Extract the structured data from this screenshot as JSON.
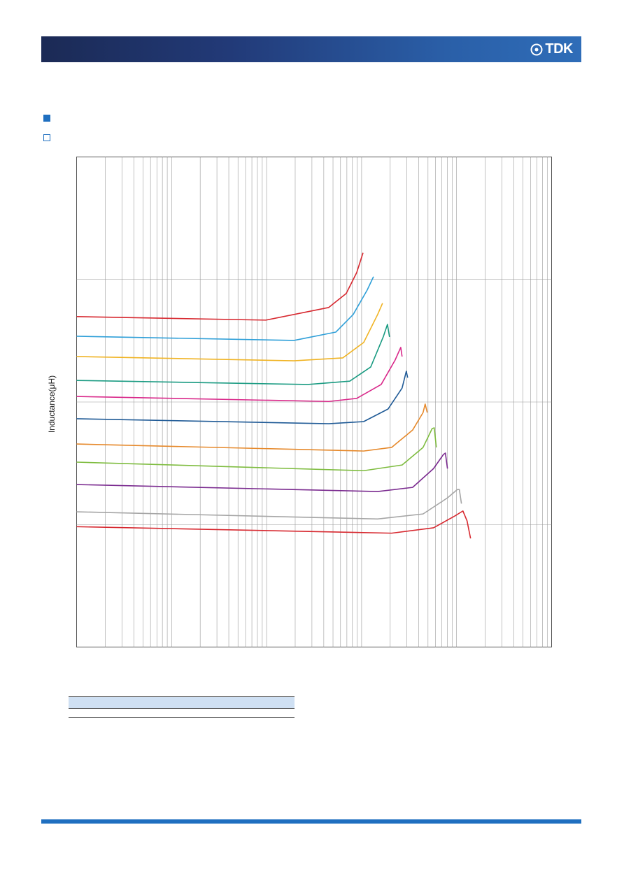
{
  "header": {
    "logo": "TDK"
  },
  "chart_data": {
    "type": "line",
    "y_label": "Inductance(μH)",
    "xscale": "log",
    "yscale": "log",
    "grid": true,
    "xlim": [
      1,
      100000
    ],
    "ylim": [
      0.0001,
      1
    ],
    "series": [
      {
        "color": "#d7282f",
        "x": [
          1,
          98,
          451,
          689,
          889,
          1035
        ],
        "y": [
          0.0498,
          0.0466,
          0.0591,
          0.0769,
          0.114,
          0.165
        ]
      },
      {
        "color": "#2e9fd8",
        "x": [
          1,
          194,
          535,
          816,
          1145,
          1334
        ],
        "y": [
          0.0344,
          0.0318,
          0.0372,
          0.0518,
          0.082,
          0.1054
        ]
      },
      {
        "color": "#f0b323",
        "x": [
          1,
          194,
          633,
          1052,
          1476,
          1662
        ],
        "y": [
          0.0235,
          0.0217,
          0.0229,
          0.0306,
          0.0518,
          0.064
        ]
      },
      {
        "color": "#1a9b82",
        "x": [
          1,
          272,
          750,
          1247,
          1690,
          1871,
          1967
        ],
        "y": [
          0.015,
          0.0139,
          0.0148,
          0.0193,
          0.034,
          0.043,
          0.034
        ]
      },
      {
        "color": "#d9288a",
        "x": [
          1,
          451,
          889,
          1607,
          2254,
          2582,
          2668
        ],
        "y": [
          0.0111,
          0.0101,
          0.0107,
          0.0139,
          0.022,
          0.0279,
          0.0235
        ]
      },
      {
        "color": "#1f5a96",
        "x": [
          1,
          451,
          1052,
          1901,
          2668,
          2955,
          3055
        ],
        "y": [
          0.0073,
          0.00665,
          0.00692,
          0.00877,
          0.013,
          0.0178,
          0.0158
        ]
      },
      {
        "color": "#e6892b",
        "x": [
          1,
          1052,
          2070,
          3443,
          4436,
          4667,
          4909
        ],
        "y": [
          0.00454,
          0.00398,
          0.00426,
          0.0059,
          0.0082,
          0.00962,
          0.0082
        ]
      },
      {
        "color": "#7ebc3f",
        "x": [
          1,
          1052,
          2668,
          4436,
          5529,
          5815,
          6121
        ],
        "y": [
          0.00323,
          0.00275,
          0.00306,
          0.00426,
          0.00607,
          0.00615,
          0.00426
        ]
      },
      {
        "color": "#7a2a8f",
        "x": [
          1,
          1476,
          3443,
          5717,
          7251,
          7621,
          8017
        ],
        "y": [
          0.00212,
          0.00186,
          0.00201,
          0.00286,
          0.00372,
          0.00383,
          0.00286
        ]
      },
      {
        "color": "#a5a5a5",
        "x": [
          1,
          1476,
          4436,
          8017,
          10170,
          10690,
          11250
        ],
        "y": [
          0.00127,
          0.00111,
          0.00122,
          0.00165,
          0.00193,
          0.00193,
          0.00148
        ]
      },
      {
        "color": "#d7282f",
        "x": [
          1,
          2070,
          5717,
          9504,
          11650,
          12890,
          14030
        ],
        "y": [
          0.00096,
          0.00085,
          0.00094,
          0.00117,
          0.00129,
          0.00107,
          0.00077
        ]
      }
    ]
  }
}
